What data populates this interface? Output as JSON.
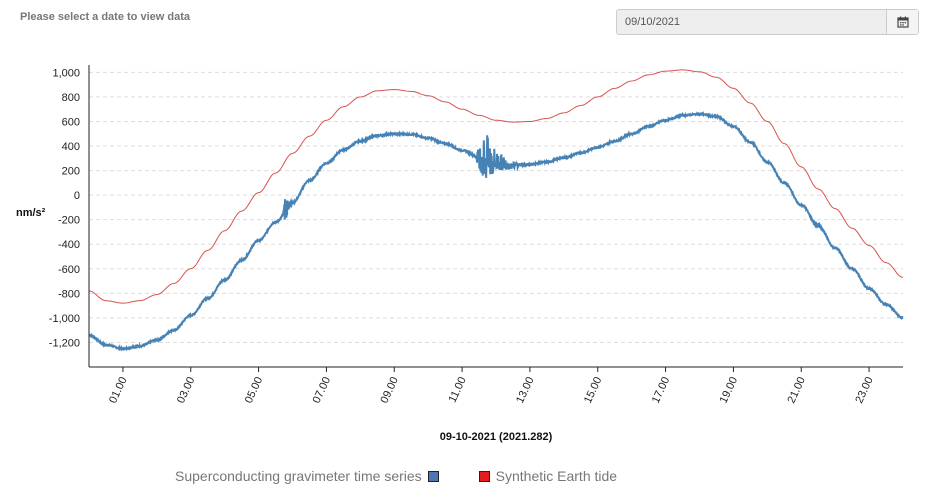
{
  "header": {
    "prompt": "Please select a date to view data",
    "date_value": "09/10/2021",
    "calendar_icon": "calendar-icon"
  },
  "chart_data": {
    "type": "line",
    "xlabel": "09-10-2021 (2021.282)",
    "ylabel": "nm/s²",
    "xlim": [
      0,
      24
    ],
    "ylim": [
      -1400,
      1000
    ],
    "x_ticks": [
      "01.00",
      "03.00",
      "05.00",
      "07.00",
      "09.00",
      "11.00",
      "13.00",
      "15.00",
      "17.00",
      "19.00",
      "21.00",
      "23.00"
    ],
    "y_ticks": [
      1000,
      800,
      600,
      400,
      200,
      0,
      -200,
      -400,
      -600,
      -800,
      -1000,
      -1200
    ],
    "y_tick_labels": [
      "1,000",
      "800",
      "600",
      "400",
      "200",
      "0",
      "-200",
      "-400",
      "-600",
      "-800",
      "-1,000",
      "-1,200"
    ],
    "grid": true,
    "legend_position": "bottom",
    "series": [
      {
        "name": "Superconducting gravimeter time series",
        "color": "#4682b4",
        "x": [
          0,
          0.5,
          1,
          1.5,
          2,
          2.5,
          3,
          3.5,
          4,
          4.5,
          5,
          5.5,
          6,
          6.5,
          7,
          7.5,
          8,
          8.5,
          9,
          9.5,
          10,
          10.5,
          11,
          11.5,
          12,
          12.5,
          13,
          13.5,
          14,
          14.5,
          15,
          15.5,
          16,
          16.5,
          17,
          17.5,
          18,
          18.5,
          19,
          19.5,
          20,
          20.5,
          21,
          21.5,
          22,
          22.5,
          23,
          23.5,
          24
        ],
        "y": [
          -1140,
          -1220,
          -1250,
          -1230,
          -1180,
          -1100,
          -980,
          -840,
          -690,
          -530,
          -370,
          -220,
          -60,
          120,
          260,
          370,
          440,
          485,
          500,
          495,
          465,
          420,
          365,
          310,
          270,
          245,
          250,
          270,
          305,
          345,
          390,
          440,
          500,
          560,
          610,
          650,
          660,
          640,
          560,
          430,
          270,
          100,
          -80,
          -250,
          -430,
          -600,
          -760,
          -890,
          -1000
        ]
      },
      {
        "name": "Synthetic Earth tide",
        "color": "#d9534f",
        "x": [
          0,
          0.5,
          1,
          1.5,
          2,
          2.5,
          3,
          3.5,
          4,
          4.5,
          5,
          5.5,
          6,
          6.5,
          7,
          7.5,
          8,
          8.5,
          9,
          9.5,
          10,
          10.5,
          11,
          11.5,
          12,
          12.5,
          13,
          13.5,
          14,
          14.5,
          15,
          15.5,
          16,
          16.5,
          17,
          17.5,
          18,
          18.5,
          19,
          19.5,
          20,
          20.5,
          21,
          21.5,
          22,
          22.5,
          23,
          23.5,
          24
        ],
        "y": [
          -780,
          -860,
          -880,
          -860,
          -810,
          -720,
          -600,
          -450,
          -290,
          -130,
          20,
          180,
          340,
          480,
          610,
          720,
          800,
          850,
          860,
          845,
          810,
          760,
          700,
          650,
          610,
          595,
          600,
          625,
          670,
          730,
          800,
          870,
          930,
          980,
          1010,
          1020,
          1005,
          960,
          870,
          750,
          600,
          420,
          230,
          50,
          -110,
          -270,
          -410,
          -550,
          -670
        ]
      }
    ],
    "bursts": [
      {
        "series": 0,
        "center": 5.8,
        "width": 0.25,
        "amplitude": 130
      },
      {
        "series": 0,
        "center": 11.7,
        "width": 1.1,
        "amplitude": 220
      },
      {
        "series": 0,
        "center": 21.5,
        "width": 0.15,
        "amplitude": 25
      }
    ]
  },
  "legend": {
    "items": [
      {
        "label": "Superconducting gravimeter time series",
        "color": "#4a77b4"
      },
      {
        "label": "Synthetic Earth tide",
        "color": "#e11d1d"
      }
    ]
  }
}
